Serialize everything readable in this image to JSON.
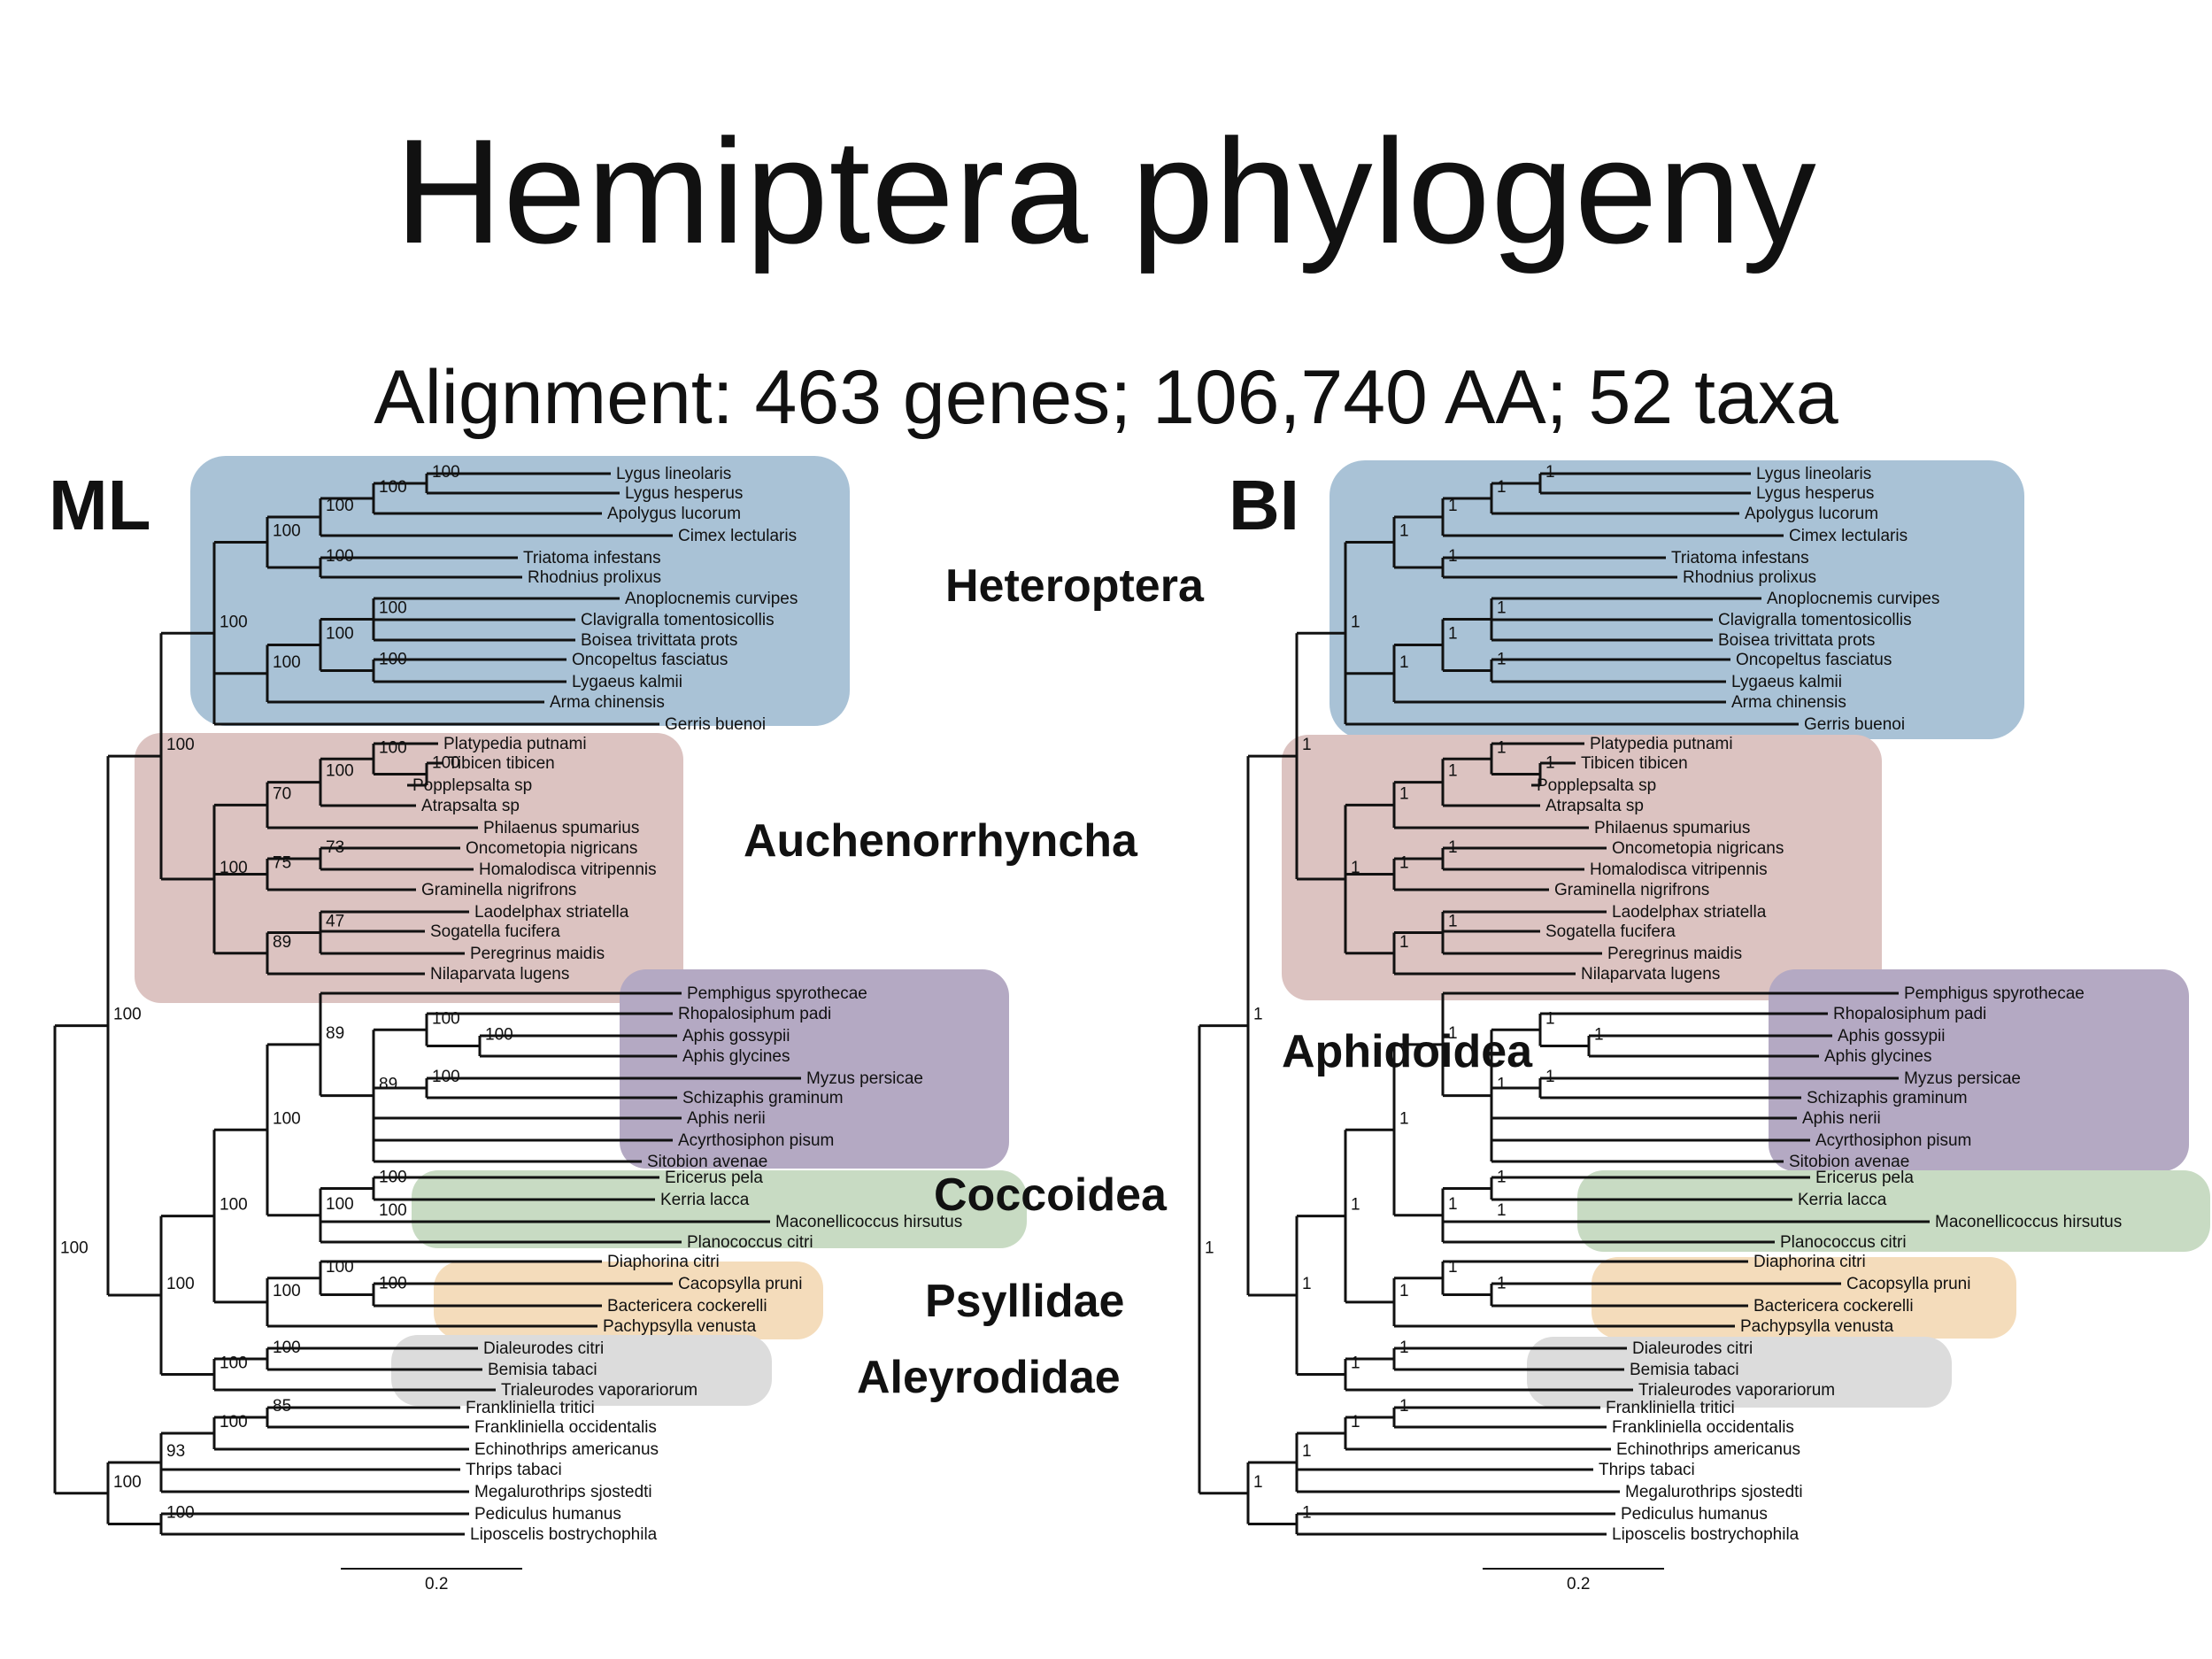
{
  "title": "Hemiptera phylogeny",
  "subtitle": "Alignment: 463 genes; 106,740 AA; 52 taxa",
  "colors": {
    "heteroptera": "#a9c2d6",
    "auchenorrhyncha": "#dcc3c1",
    "aphidoidea": "#b4a9c3",
    "coccoidea": "#c8dbc3",
    "psyllidae": "#f4dcbb",
    "aleyrodidae": "#dcdcdc"
  },
  "clade_labels": {
    "heteroptera": "Heteroptera",
    "auchenorrhyncha": "Auchenorrhyncha",
    "aphidoidea": "Aphidoidea",
    "coccoidea": "Coccoidea",
    "psyllidae": "Psyllidae",
    "aleyrodidae": "Aleyrodidae"
  },
  "taxa": [
    "Lygus lineolaris",
    "Lygus hesperus",
    "Apolygus lucorum",
    "Cimex lectularis",
    "Triatoma infestans",
    "Rhodnius prolixus",
    "Anoplocnemis curvipes",
    "Clavigralla tomentosicollis",
    "Boisea trivittata prots",
    "Oncopeltus fasciatus",
    "Lygaeus kalmii",
    "Arma chinensis",
    "Gerris buenoi",
    "Platypedia putnami",
    "Tibicen tibicen",
    "Popplepsalta sp",
    "Atrapsalta sp",
    "Philaenus spumarius",
    "Oncometopia nigricans",
    "Homalodisca vitripennis",
    "Graminella nigrifrons",
    "Laodelphax striatella",
    "Sogatella fucifera",
    "Peregrinus maidis",
    "Nilaparvata lugens",
    "Pemphigus spyrothecae",
    "Rhopalosiphum padi",
    "Aphis gossypii",
    "Aphis glycines",
    "Myzus persicae",
    "Schizaphis graminum",
    "Aphis nerii",
    "Acyrthosiphon pisum",
    "Sitobion avenae",
    "Ericerus pela",
    "Kerria lacca",
    "Maconellicoccus hirsutus",
    "Planococcus citri",
    "Diaphorina citri",
    "Cacopsylla pruni",
    "Bactericera cockerelli",
    "Pachypsylla venusta",
    "Dialeurodes citri",
    "Bemisia tabaci",
    "Trialeurodes vaporariorum",
    "Frankliniella tritici",
    "Frankliniella occidentalis",
    "Echinothrips americanus",
    "Thrips tabaci",
    "Megalurothrips sjostedti",
    "Pediculus humanus",
    "Liposcelis bostrychophila"
  ],
  "trees": [
    {
      "method": "ML",
      "scale_label": "0.2",
      "support": [
        "100",
        "100",
        "100",
        "100",
        "100",
        "100",
        "100",
        "100",
        "100",
        "100",
        "100",
        "100",
        "100",
        "100",
        "100",
        "70",
        "100",
        "73",
        "75",
        "100",
        "47",
        "89",
        "100",
        "100",
        "100",
        "100",
        "89",
        "89",
        "100",
        "100",
        "100",
        "100",
        "100",
        "100",
        "100",
        "100",
        "100",
        "100",
        "100",
        "100",
        "85",
        "100",
        "93",
        "100",
        "100",
        "100",
        "100",
        "100",
        "100",
        "100"
      ]
    },
    {
      "method": "BI",
      "scale_label": "0.2",
      "support": [
        "1",
        "1",
        "1",
        "1",
        "1",
        "1",
        "1",
        "1",
        "1",
        "1",
        "1",
        "1",
        "1",
        "1",
        "1",
        "1",
        "1",
        "1",
        "1",
        "1",
        "1",
        "1",
        "1",
        "1",
        "1",
        "1",
        "1",
        "1",
        "1",
        "1",
        "1",
        "1",
        "1",
        "1",
        "1",
        "1",
        "1",
        "1",
        "1",
        "1",
        "1",
        "1",
        "1",
        "1",
        "1",
        "1",
        "1",
        "1",
        "1",
        "1"
      ]
    }
  ]
}
